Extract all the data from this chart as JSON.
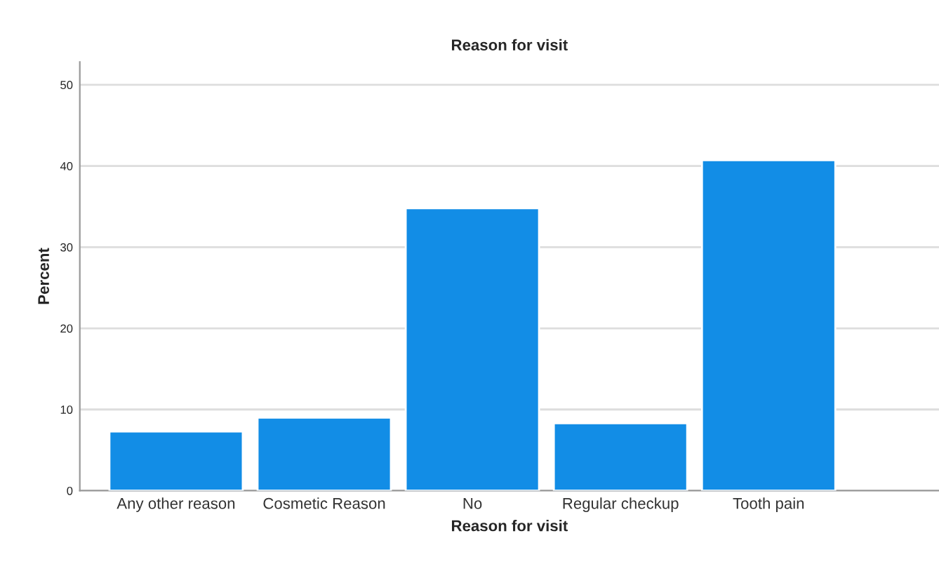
{
  "chart_data": {
    "type": "bar",
    "title": "Reason for visit",
    "xlabel": "Reason for visit",
    "ylabel": "Percent",
    "categories": [
      "Any other reason",
      "Cosmetic Reason",
      "No",
      "Regular checkup",
      "Tooth pain"
    ],
    "values": [
      7.3,
      9.0,
      34.8,
      8.3,
      40.7
    ],
    "color": "#128de6",
    "ylim": [
      0,
      52.8
    ],
    "yticks": [
      0,
      10,
      20,
      30,
      40,
      50
    ],
    "grid": "y"
  }
}
